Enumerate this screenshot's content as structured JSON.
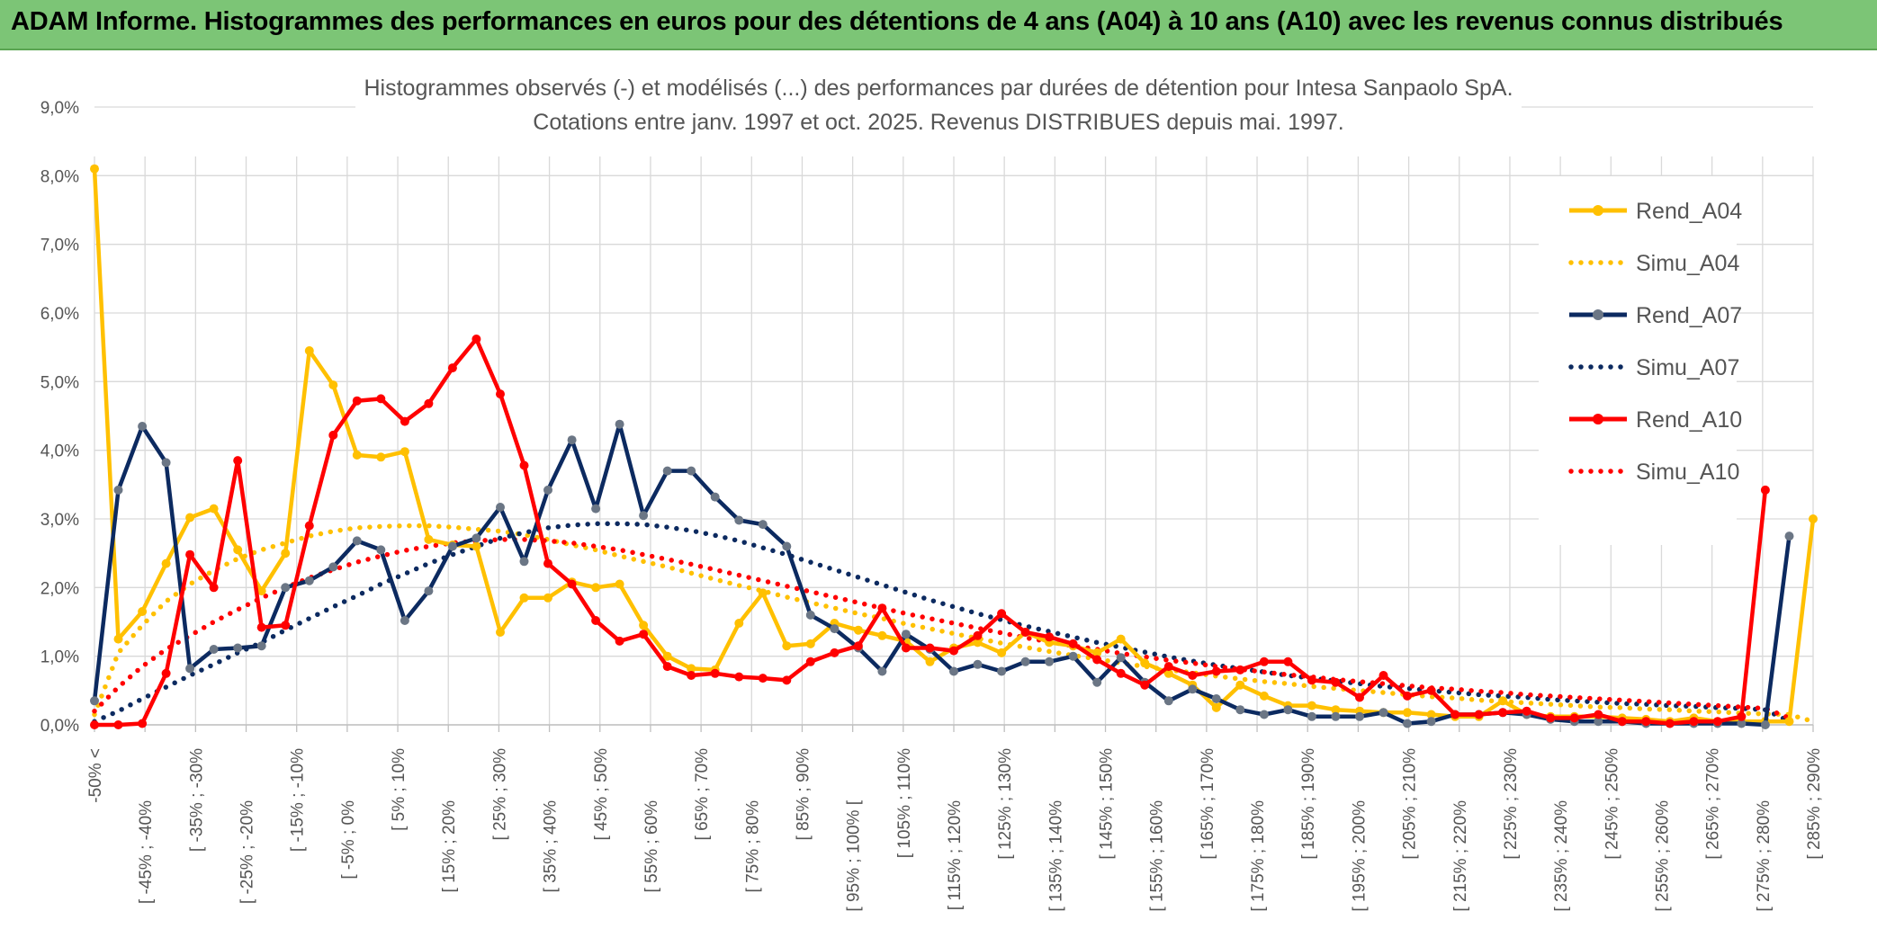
{
  "header": {
    "title": "ADAM Informe. Histogrammes des performances en euros pour des détentions de 4 ans (A04) à 10 ans (A10) avec les revenus connus distribués"
  },
  "chart_data": {
    "type": "line",
    "title": "Histogrammes observés (-) et modélisés (...) des performances par durées de détention pour Intesa Sanpaolo SpA.",
    "subtitle": "Cotations entre janv. 1997 et oct. 2025. Revenus DISTRIBUES depuis mai. 1997.",
    "xlabel": "",
    "ylabel": "",
    "ylim": [
      0,
      9
    ],
    "y_ticks": [
      "0,0%",
      "1,0%",
      "2,0%",
      "3,0%",
      "4,0%",
      "5,0%",
      "6,0%",
      "7,0%",
      "8,0%",
      "9,0%"
    ],
    "grid": true,
    "legend_position": "right",
    "x_tick_labels": [
      "-50% <",
      "[ -45% ; -40%",
      "[ -35% ; -30%",
      "[ -25% ; -20%",
      "[ -15% ; -10%",
      "[ -5% ; 0%",
      "[ 5% ; 10%",
      "[ 15% ; 20%",
      "[ 25% ; 30%",
      "[ 35% ; 40%",
      "[ 45% ; 50%",
      "[ 55% ; 60%",
      "[ 65% ; 70%",
      "[ 75% ; 80%",
      "[ 85% ; 90%",
      "[ 95% ; 100% [",
      "[ 105% ; 110%",
      "[ 115% ; 120%",
      "[ 125% ; 130%",
      "[ 135% ; 140%",
      "[ 145% ; 150%",
      "[ 155% ; 160%",
      "[ 165% ; 170%",
      "[ 175% ; 180%",
      "[ 185% ; 190%",
      "[ 195% ; 200%",
      "[ 205% ; 210%",
      "[ 215% ; 220%",
      "[ 225% ; 230%",
      "[ 235% ; 240%",
      "[ 245% ; 250%",
      "[ 255% ; 260%",
      "[ 265% ; 270%",
      "[ 275% ; 280%",
      "[ 285% ; 290%"
    ],
    "series": [
      {
        "name": "Rend_A04",
        "color": "#ffc000",
        "style": "solid",
        "values": [
          8.1,
          1.25,
          1.65,
          2.35,
          3.02,
          3.15,
          2.55,
          1.95,
          2.5,
          5.45,
          4.95,
          3.93,
          3.9,
          3.98,
          2.7,
          2.62,
          2.6,
          1.35,
          1.85,
          1.85,
          2.08,
          2.0,
          2.05,
          1.45,
          1.0,
          0.82,
          0.8,
          1.48,
          1.92,
          1.15,
          1.18,
          1.48,
          1.38,
          1.3,
          1.22,
          0.92,
          1.12,
          1.2,
          1.05,
          1.35,
          1.2,
          1.15,
          1.05,
          1.25,
          0.9,
          0.75,
          0.58,
          0.25,
          0.58,
          0.42,
          0.28,
          0.28,
          0.22,
          0.2,
          0.18,
          0.18,
          0.15,
          0.12,
          0.12,
          0.35,
          0.15,
          0.12,
          0.12,
          0.12,
          0.1,
          0.08,
          0.05,
          0.1,
          0.05,
          0.05,
          0.05,
          0.05,
          3.0
        ]
      },
      {
        "name": "Simu_A04",
        "color": "#ffc000",
        "style": "dotted",
        "values": [
          0.15,
          1.05,
          1.45,
          1.8,
          2.05,
          2.25,
          2.42,
          2.55,
          2.65,
          2.75,
          2.82,
          2.87,
          2.89,
          2.9,
          2.9,
          2.88,
          2.85,
          2.82,
          2.77,
          2.7,
          2.62,
          2.55,
          2.46,
          2.38,
          2.3,
          2.21,
          2.12,
          2.03,
          1.95,
          1.86,
          1.78,
          1.7,
          1.62,
          1.55,
          1.47,
          1.4,
          1.33,
          1.26,
          1.19,
          1.13,
          1.07,
          1.01,
          0.96,
          0.9,
          0.85,
          0.8,
          0.76,
          0.71,
          0.67,
          0.63,
          0.6,
          0.56,
          0.53,
          0.5,
          0.47,
          0.44,
          0.41,
          0.39,
          0.36,
          0.34,
          0.32,
          0.3,
          0.28,
          0.26,
          0.25,
          0.23,
          0.22,
          0.2,
          0.19,
          0.17,
          0.16,
          0.15,
          0.05
        ]
      },
      {
        "name": "Rend_A07",
        "color": "#0c2a60",
        "style": "solid",
        "values": [
          0.35,
          3.42,
          4.35,
          3.82,
          0.82,
          1.1,
          1.12,
          1.15,
          2.0,
          2.1,
          2.3,
          2.68,
          2.55,
          1.52,
          1.95,
          2.6,
          2.72,
          3.17,
          2.38,
          3.42,
          4.15,
          3.15,
          4.38,
          3.05,
          3.7,
          3.7,
          3.32,
          2.98,
          2.92,
          2.6,
          1.6,
          1.4,
          1.12,
          0.78,
          1.32,
          1.1,
          0.78,
          0.88,
          0.78,
          0.92,
          0.92,
          1.0,
          0.62,
          0.98,
          0.62,
          0.35,
          0.52,
          0.38,
          0.22,
          0.15,
          0.22,
          0.12,
          0.12,
          0.12,
          0.18,
          0.02,
          0.05,
          0.15,
          0.15,
          0.18,
          0.15,
          0.08,
          0.05,
          0.05,
          0.05,
          0.02,
          0.02,
          0.02,
          0.02,
          0.02,
          0.0,
          2.75
        ]
      },
      {
        "name": "Simu_A07",
        "color": "#0c2a60",
        "style": "dotted",
        "values": [
          0.05,
          0.2,
          0.38,
          0.55,
          0.72,
          0.88,
          1.05,
          1.2,
          1.38,
          1.55,
          1.72,
          1.88,
          2.05,
          2.2,
          2.35,
          2.48,
          2.6,
          2.72,
          2.8,
          2.87,
          2.91,
          2.93,
          2.93,
          2.92,
          2.88,
          2.83,
          2.76,
          2.68,
          2.58,
          2.48,
          2.37,
          2.26,
          2.15,
          2.04,
          1.93,
          1.82,
          1.72,
          1.62,
          1.53,
          1.44,
          1.36,
          1.28,
          1.2,
          1.13,
          1.06,
          0.99,
          0.93,
          0.87,
          0.82,
          0.77,
          0.72,
          0.68,
          0.64,
          0.6,
          0.56,
          0.53,
          0.5,
          0.47,
          0.44,
          0.42,
          0.4,
          0.37,
          0.35,
          0.33,
          0.31,
          0.3,
          0.28,
          0.27,
          0.25,
          0.24,
          0.22,
          0.05
        ]
      },
      {
        "name": "Rend_A10",
        "color": "#ff0000",
        "style": "solid",
        "values": [
          0.0,
          0.0,
          0.02,
          0.75,
          2.48,
          2.0,
          3.85,
          1.42,
          1.45,
          2.9,
          4.22,
          4.72,
          4.75,
          4.42,
          4.68,
          5.2,
          5.62,
          4.82,
          3.78,
          2.35,
          2.05,
          1.52,
          1.22,
          1.32,
          0.85,
          0.72,
          0.75,
          0.7,
          0.68,
          0.65,
          0.92,
          1.05,
          1.15,
          1.7,
          1.12,
          1.12,
          1.08,
          1.3,
          1.62,
          1.35,
          1.28,
          1.18,
          0.95,
          0.75,
          0.58,
          0.85,
          0.72,
          0.78,
          0.8,
          0.92,
          0.92,
          0.65,
          0.62,
          0.4,
          0.72,
          0.42,
          0.5,
          0.15,
          0.15,
          0.18,
          0.2,
          0.1,
          0.1,
          0.15,
          0.05,
          0.05,
          0.02,
          0.05,
          0.05,
          0.12,
          3.42
        ]
      },
      {
        "name": "Simu_A10",
        "color": "#ff0000",
        "style": "dotted",
        "values": [
          0.2,
          0.55,
          0.85,
          1.1,
          1.3,
          1.5,
          1.68,
          1.85,
          2.0,
          2.14,
          2.26,
          2.37,
          2.46,
          2.54,
          2.6,
          2.65,
          2.68,
          2.7,
          2.7,
          2.68,
          2.65,
          2.6,
          2.55,
          2.48,
          2.41,
          2.34,
          2.26,
          2.18,
          2.1,
          2.02,
          1.94,
          1.86,
          1.78,
          1.7,
          1.62,
          1.55,
          1.48,
          1.41,
          1.34,
          1.27,
          1.21,
          1.15,
          1.1,
          1.04,
          0.99,
          0.94,
          0.9,
          0.85,
          0.81,
          0.77,
          0.73,
          0.7,
          0.66,
          0.63,
          0.6,
          0.57,
          0.54,
          0.52,
          0.49,
          0.47,
          0.44,
          0.42,
          0.4,
          0.38,
          0.36,
          0.34,
          0.32,
          0.3,
          0.28,
          0.26,
          0.24,
          0.1
        ]
      }
    ]
  }
}
